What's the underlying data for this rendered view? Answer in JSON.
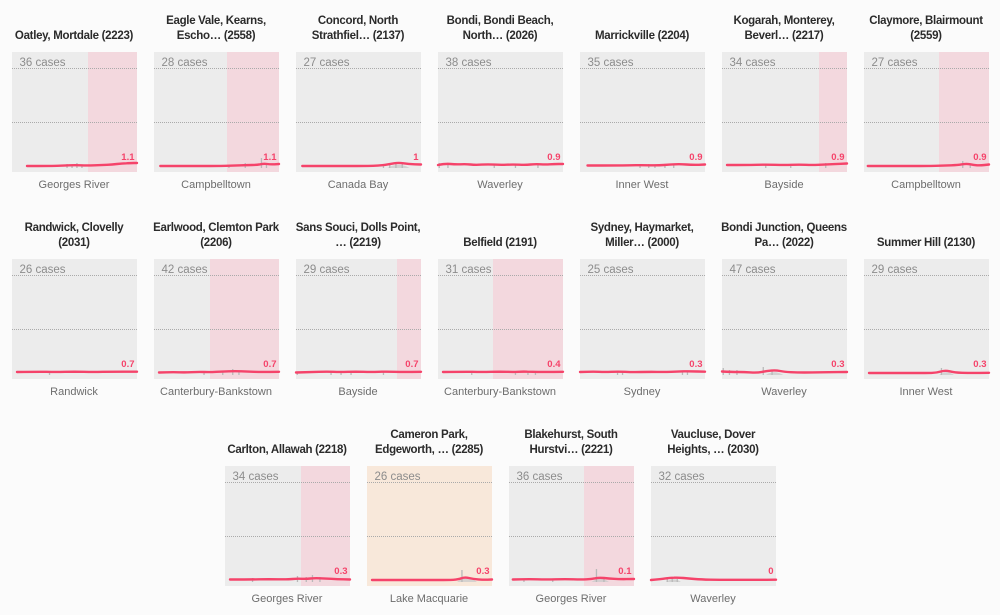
{
  "colors": {
    "accent": "#f5436a",
    "chart_bg": "#ececec",
    "band_pink": "#f3d8de",
    "band_tan": "#f8e8da",
    "bars": "#b9b9b9",
    "hump": "#cccccc",
    "grid": "#aaaaaa",
    "title": "#2b2b2b",
    "muted": "#8c8c8c",
    "lga": "#6d6d6d",
    "page_bg": "#fbfbfb"
  },
  "layout": {
    "rows": [
      7,
      7,
      4
    ]
  },
  "chart_data": {
    "type": "line",
    "title": "",
    "panels": [
      {
        "title": "Oatley, Mortdale (2223)",
        "cases_label": "36 cases",
        "cases": 36,
        "lga": "Georges River",
        "value": "1.1",
        "band": {
          "start": 0.61,
          "end": 1,
          "color": "pink"
        },
        "line": [
          [
            0.12,
            1
          ],
          [
            0.3,
            1
          ],
          [
            0.42,
            1.5
          ],
          [
            0.5,
            2
          ],
          [
            0.6,
            1.5
          ],
          [
            0.72,
            2
          ],
          [
            0.8,
            2.5
          ],
          [
            0.88,
            3.5
          ],
          [
            0.95,
            4
          ],
          [
            1,
            4
          ]
        ],
        "bars": [
          [
            0.44,
            3
          ],
          [
            0.48,
            2
          ],
          [
            0.52,
            4
          ],
          [
            0.56,
            2
          ]
        ],
        "hump": null
      },
      {
        "title": "Eagle Vale, Kearns,\nEscho… (2558)",
        "cases_label": "28 cases",
        "cases": 28,
        "lga": "Campbelltown",
        "value": "1.1",
        "band": {
          "start": 0.59,
          "end": 1,
          "color": "pink"
        },
        "line": [
          [
            0.05,
            1
          ],
          [
            0.3,
            1
          ],
          [
            0.5,
            1
          ],
          [
            0.65,
            1.5
          ],
          [
            0.75,
            2
          ],
          [
            0.82,
            2
          ],
          [
            0.88,
            3.5
          ],
          [
            0.93,
            2.5
          ],
          [
            1,
            3
          ]
        ],
        "bars": [
          [
            0.6,
            2
          ],
          [
            0.73,
            4
          ],
          [
            0.86,
            9
          ],
          [
            0.9,
            3
          ]
        ],
        "hump": null
      },
      {
        "title": "Concord, North\nStrathfiel… (2137)",
        "cases_label": "27 cases",
        "cases": 27,
        "lga": "Canada Bay",
        "value": "1",
        "band": null,
        "line": [
          [
            0.05,
            1
          ],
          [
            0.3,
            1
          ],
          [
            0.55,
            1
          ],
          [
            0.68,
            1.5
          ],
          [
            0.75,
            3
          ],
          [
            0.82,
            4.5
          ],
          [
            0.9,
            3
          ],
          [
            1,
            2.5
          ]
        ],
        "bars": [
          [
            0.7,
            3
          ],
          [
            0.75,
            3
          ],
          [
            0.8,
            4
          ],
          [
            0.85,
            3
          ]
        ],
        "hump": [
          0.82,
          0.18,
          3
        ]
      },
      {
        "title": "Bondi, Bondi Beach,\nNorth… (2026)",
        "cases_label": "38 cases",
        "cases": 38,
        "lga": "Waverley",
        "value": "0.9",
        "band": null,
        "line": [
          [
            0,
            2
          ],
          [
            0.06,
            3.5
          ],
          [
            0.14,
            2.5
          ],
          [
            0.22,
            3
          ],
          [
            0.3,
            2
          ],
          [
            0.4,
            2.8
          ],
          [
            0.5,
            2
          ],
          [
            0.6,
            2.6
          ],
          [
            0.7,
            2
          ],
          [
            0.78,
            3
          ],
          [
            0.86,
            2.4
          ],
          [
            0.93,
            3
          ],
          [
            1,
            3
          ]
        ],
        "bars": [
          [
            0.01,
            4
          ],
          [
            0.08,
            3
          ],
          [
            0.45,
            2
          ],
          [
            0.62,
            2
          ],
          [
            0.8,
            2
          ]
        ],
        "hump": null
      },
      {
        "title": "Marrickville (2204)",
        "cases_label": "35 cases",
        "cases": 35,
        "lga": "Inner West",
        "value": "0.9",
        "band": null,
        "line": [
          [
            0.06,
            1.5
          ],
          [
            0.3,
            1.5
          ],
          [
            0.5,
            2
          ],
          [
            0.62,
            1.5
          ],
          [
            0.72,
            2.5
          ],
          [
            0.8,
            3
          ],
          [
            0.9,
            2
          ],
          [
            1,
            2.5
          ]
        ],
        "bars": [
          [
            0.48,
            2
          ],
          [
            0.55,
            3
          ],
          [
            0.6,
            2
          ],
          [
            0.68,
            2
          ],
          [
            0.75,
            3
          ]
        ],
        "hump": null
      },
      {
        "title": "Kogarah, Monterey,\nBeverl… (2217)",
        "cases_label": "34 cases",
        "cases": 34,
        "lga": "Bayside",
        "value": "0.9",
        "band": {
          "start": 0.78,
          "end": 1,
          "color": "pink"
        },
        "line": [
          [
            0.04,
            2
          ],
          [
            0.2,
            2
          ],
          [
            0.35,
            2.5
          ],
          [
            0.5,
            2
          ],
          [
            0.62,
            2.5
          ],
          [
            0.72,
            2
          ],
          [
            0.82,
            2.5
          ],
          [
            0.9,
            3
          ],
          [
            1,
            3.5
          ]
        ],
        "bars": [
          [
            0.35,
            2
          ],
          [
            0.55,
            2
          ],
          [
            0.83,
            4
          ]
        ],
        "hump": null
      },
      {
        "title": "Claymore, Blairmount\n(2559)",
        "cases_label": "27 cases",
        "cases": 27,
        "lga": "Campbelltown",
        "value": "0.9",
        "band": {
          "start": 0.6,
          "end": 1,
          "color": "pink"
        },
        "line": [
          [
            0.03,
            1
          ],
          [
            0.3,
            1
          ],
          [
            0.5,
            1
          ],
          [
            0.65,
            1.5
          ],
          [
            0.75,
            2
          ],
          [
            0.82,
            3.5
          ],
          [
            0.88,
            2
          ],
          [
            0.93,
            1.5
          ],
          [
            1,
            2.5
          ]
        ],
        "bars": [
          [
            0.79,
            6
          ],
          [
            0.85,
            2
          ]
        ],
        "hump": null
      },
      {
        "title": "Randwick, Clovelly\n(2031)",
        "cases_label": "26 cases",
        "cases": 26,
        "lga": "Randwick",
        "value": "0.7",
        "band": null,
        "line": [
          [
            0.04,
            2
          ],
          [
            0.2,
            2.3
          ],
          [
            0.35,
            2
          ],
          [
            0.5,
            2.3
          ],
          [
            0.65,
            2
          ],
          [
            0.8,
            2.3
          ],
          [
            1,
            2.3
          ]
        ],
        "bars": [
          [
            0.3,
            3
          ]
        ],
        "hump": null
      },
      {
        "title": "Earlwood, Clemton Park\n(2206)",
        "cases_label": "42 cases",
        "cases": 42,
        "lga": "Canterbury-Bankstown",
        "value": "0.7",
        "band": {
          "start": 0.45,
          "end": 1,
          "color": "pink"
        },
        "line": [
          [
            0.04,
            1.5
          ],
          [
            0.15,
            2
          ],
          [
            0.25,
            1.5
          ],
          [
            0.35,
            2.2
          ],
          [
            0.45,
            1.8
          ],
          [
            0.55,
            2.5
          ],
          [
            0.65,
            3
          ],
          [
            0.75,
            2.5
          ],
          [
            0.85,
            2
          ],
          [
            1,
            2.2
          ]
        ],
        "bars": [
          [
            0.4,
            2
          ],
          [
            0.55,
            3
          ],
          [
            0.63,
            5
          ],
          [
            0.68,
            3
          ]
        ],
        "hump": null
      },
      {
        "title": "Sans Souci, Dolls Point,\n… (2219)",
        "cases_label": "29 cases",
        "cases": 29,
        "lga": "Bayside",
        "value": "0.7",
        "band": {
          "start": 0.81,
          "end": 1,
          "color": "pink"
        },
        "line": [
          [
            0,
            1.5
          ],
          [
            0.12,
            2
          ],
          [
            0.25,
            2.5
          ],
          [
            0.35,
            2
          ],
          [
            0.48,
            2.3
          ],
          [
            0.6,
            2
          ],
          [
            0.72,
            2.5
          ],
          [
            0.85,
            2
          ],
          [
            1,
            2.2
          ]
        ],
        "bars": [
          [
            0.01,
            2
          ],
          [
            0.28,
            3
          ],
          [
            0.36,
            2
          ],
          [
            0.44,
            2
          ],
          [
            0.7,
            3
          ]
        ],
        "hump": null
      },
      {
        "title": "Belfield (2191)",
        "cases_label": "31 cases",
        "cases": 31,
        "lga": "Canterbury-Bankstown",
        "value": "0.4",
        "band": {
          "start": 0.44,
          "end": 1,
          "color": "pink"
        },
        "line": [
          [
            0.04,
            2
          ],
          [
            0.2,
            2.3
          ],
          [
            0.35,
            2
          ],
          [
            0.5,
            2.3
          ],
          [
            0.6,
            2
          ],
          [
            0.68,
            2.5
          ],
          [
            0.75,
            2.2
          ],
          [
            0.85,
            2
          ],
          [
            1,
            2.2
          ]
        ],
        "bars": [
          [
            0.27,
            3
          ],
          [
            0.62,
            2
          ],
          [
            0.72,
            3
          ],
          [
            0.78,
            2
          ]
        ],
        "hump": null
      },
      {
        "title": "Sydney, Haymarket,\nMiller… (2000)",
        "cases_label": "25 cases",
        "cases": 25,
        "lga": "Sydney",
        "value": "0.3",
        "band": null,
        "line": [
          [
            0,
            2
          ],
          [
            0.1,
            2.5
          ],
          [
            0.2,
            2
          ],
          [
            0.3,
            2.5
          ],
          [
            0.42,
            1.8
          ],
          [
            0.55,
            2.2
          ],
          [
            0.68,
            2
          ],
          [
            0.78,
            2.5
          ],
          [
            0.88,
            2.8
          ],
          [
            1,
            2.3
          ]
        ],
        "bars": [
          [
            0.3,
            3
          ],
          [
            0.34,
            2
          ],
          [
            0.82,
            2
          ],
          [
            0.86,
            2
          ]
        ],
        "hump": null
      },
      {
        "title": "Bondi Junction, Queens\nPa… (2022)",
        "cases_label": "47 cases",
        "cases": 47,
        "lga": "Waverley",
        "value": "0.3",
        "band": null,
        "line": [
          [
            0,
            2.5
          ],
          [
            0.08,
            2
          ],
          [
            0.18,
            2
          ],
          [
            0.28,
            1.2
          ],
          [
            0.36,
            3
          ],
          [
            0.43,
            3.8
          ],
          [
            0.5,
            2.2
          ],
          [
            0.6,
            1.5
          ],
          [
            0.72,
            1.5
          ],
          [
            0.85,
            1.8
          ],
          [
            1,
            2
          ]
        ],
        "bars": [
          [
            0.01,
            6
          ],
          [
            0.06,
            4
          ],
          [
            0.12,
            4
          ],
          [
            0.33,
            7
          ],
          [
            0.4,
            3
          ]
        ],
        "hump": [
          0.42,
          0.14,
          2.5
        ]
      },
      {
        "title": "Summer Hill (2130)",
        "cases_label": "29 cases",
        "cases": 29,
        "lga": "Inner West",
        "value": "0.3",
        "band": null,
        "line": [
          [
            0.04,
            1
          ],
          [
            0.3,
            1
          ],
          [
            0.5,
            1
          ],
          [
            0.58,
            1.2
          ],
          [
            0.65,
            3.8
          ],
          [
            0.72,
            1.5
          ],
          [
            0.85,
            1
          ],
          [
            1,
            1.2
          ]
        ],
        "bars": [
          [
            0.62,
            6
          ]
        ],
        "hump": [
          0.66,
          0.12,
          2.5
        ]
      },
      {
        "title": "Carlton, Allawah (2218)",
        "cases_label": "34 cases",
        "cases": 34,
        "lga": "Georges River",
        "value": "0.3",
        "band": {
          "start": 0.61,
          "end": 1,
          "color": "pink"
        },
        "line": [
          [
            0.04,
            1.5
          ],
          [
            0.2,
            1.5
          ],
          [
            0.35,
            1.8
          ],
          [
            0.5,
            1.5
          ],
          [
            0.58,
            2.5
          ],
          [
            0.65,
            2
          ],
          [
            0.72,
            3
          ],
          [
            0.8,
            2.5
          ],
          [
            0.9,
            1.8
          ],
          [
            1,
            1.5
          ]
        ],
        "bars": [
          [
            0.22,
            3
          ],
          [
            0.58,
            5
          ],
          [
            0.65,
            4
          ],
          [
            0.7,
            6
          ],
          [
            0.76,
            4
          ]
        ],
        "hump": null
      },
      {
        "title": "Cameron Park,\nEdgeworth, … (2285)",
        "cases_label": "26 cases",
        "cases": 26,
        "lga": "Lake Macquarie",
        "value": "0.3",
        "band": {
          "start": 0,
          "end": 1,
          "color": "tan"
        },
        "line": [
          [
            0.04,
            1
          ],
          [
            0.3,
            1
          ],
          [
            0.5,
            1
          ],
          [
            0.65,
            1
          ],
          [
            0.73,
            1.5
          ],
          [
            0.78,
            4
          ],
          [
            0.85,
            2
          ],
          [
            0.93,
            1.2
          ],
          [
            1,
            1.5
          ]
        ],
        "bars": [
          [
            0.76,
            11
          ]
        ],
        "hump": [
          0.8,
          0.16,
          4
        ]
      },
      {
        "title": "Blakehurst, South\nHurstvi… (2221)",
        "cases_label": "36 cases",
        "cases": 36,
        "lga": "Georges River",
        "value": "0.1",
        "band": {
          "start": 0.6,
          "end": 1,
          "color": "pink"
        },
        "line": [
          [
            0.03,
            1.5
          ],
          [
            0.15,
            2
          ],
          [
            0.3,
            1.5
          ],
          [
            0.45,
            2
          ],
          [
            0.58,
            1.5
          ],
          [
            0.66,
            2
          ],
          [
            0.72,
            3.5
          ],
          [
            0.8,
            2.5
          ],
          [
            0.88,
            1.8
          ],
          [
            1,
            2
          ]
        ],
        "bars": [
          [
            0.12,
            2
          ],
          [
            0.35,
            2
          ],
          [
            0.7,
            12
          ],
          [
            0.76,
            3
          ]
        ],
        "hump": [
          0.73,
          0.14,
          3
        ]
      },
      {
        "title": "Vaucluse, Dover\nHeights, … (2030)",
        "cases_label": "32 cases",
        "cases": 32,
        "lga": "Waverley",
        "value": "0",
        "band": null,
        "line": [
          [
            0,
            1
          ],
          [
            0.08,
            2
          ],
          [
            0.15,
            3.2
          ],
          [
            0.22,
            3.5
          ],
          [
            0.3,
            2.5
          ],
          [
            0.4,
            1.5
          ],
          [
            0.55,
            1.2
          ],
          [
            0.7,
            1.2
          ],
          [
            0.85,
            1.2
          ],
          [
            1,
            1.3
          ]
        ],
        "bars": [
          [
            0.13,
            4
          ],
          [
            0.17,
            3
          ],
          [
            0.21,
            2
          ]
        ],
        "hump": [
          0.18,
          0.12,
          2.5
        ]
      }
    ]
  }
}
